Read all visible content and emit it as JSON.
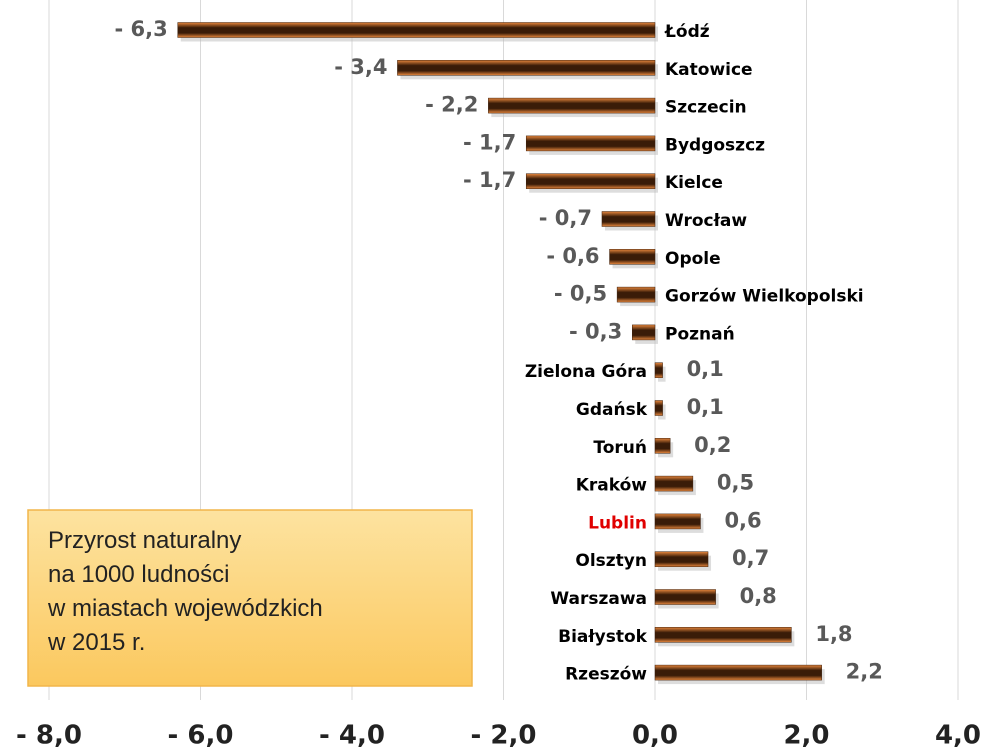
{
  "chart_data": {
    "type": "bar",
    "orientation": "horizontal",
    "categories": [
      "Łódź",
      "Katowice",
      "Szczecin",
      "Bydgoszcz",
      "Kielce",
      "Wrocław",
      "Opole",
      "Gorzów Wielkopolski",
      "Poznań",
      "Zielona Góra",
      "Gdańsk",
      "Toruń",
      "Kraków",
      "Lublin",
      "Olsztyn",
      "Warszawa",
      "Białystok",
      "Rzeszów"
    ],
    "values": [
      -6.3,
      -3.4,
      -2.2,
      -1.7,
      -1.7,
      -0.7,
      -0.6,
      -0.5,
      -0.3,
      0.1,
      0.1,
      0.2,
      0.5,
      0.6,
      0.7,
      0.8,
      1.8,
      2.2
    ],
    "value_labels": [
      "- 6,3",
      "- 3,4",
      "- 2,2",
      "- 1,7",
      "- 1,7",
      "- 0,7",
      "- 0,6",
      "- 0,5",
      "- 0,3",
      "0,1",
      "0,1",
      "0,2",
      "0,5",
      "0,6",
      "0,7",
      "0,8",
      "1,8",
      "2,2"
    ],
    "label_colors": [
      "#000000",
      "#000000",
      "#000000",
      "#000000",
      "#000000",
      "#000000",
      "#000000",
      "#000000",
      "#000000",
      "#000000",
      "#000000",
      "#000000",
      "#000000",
      "#e00000",
      "#000000",
      "#000000",
      "#000000",
      "#000000"
    ],
    "color": "#3a1c08",
    "xlim": [
      -8,
      4
    ],
    "xticks": [
      {
        "value": -8,
        "label": "- 8,0"
      },
      {
        "value": -6,
        "label": "- 6,0"
      },
      {
        "value": -4,
        "label": "- 4,0"
      },
      {
        "value": -2,
        "label": "- 2,0"
      },
      {
        "value": 0,
        "label": "0,0"
      },
      {
        "value": 2,
        "label": "2,0"
      },
      {
        "value": 4,
        "label": "4,0"
      }
    ],
    "grid": true,
    "annotation": [
      "Przyrost naturalny",
      "na 1000 ludności",
      "w miastach wojewódzkich",
      "w 2015 r."
    ]
  }
}
